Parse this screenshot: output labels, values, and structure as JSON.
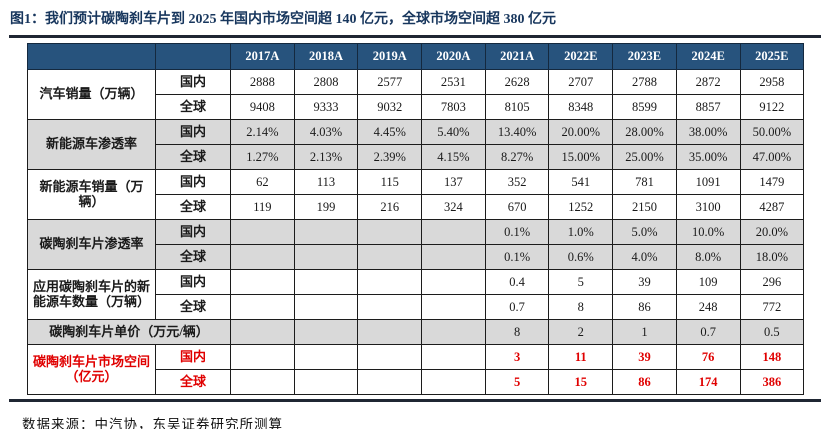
{
  "title": "图1：我们预计碳陶刹车片到 2025 年国内市场空间超 140 亿元，全球市场空间超 380 亿元",
  "footer": "数据来源：中汽协，东吴证券研究所测算",
  "colors": {
    "header_bg": "#27537D",
    "band_gray": "#D9D9D9",
    "highlight_red": "#E00000",
    "title_navy": "#17365D"
  },
  "table": {
    "year_headers": [
      "2017A",
      "2018A",
      "2019A",
      "2020A",
      "2021A",
      "2022E",
      "2023E",
      "2024E",
      "2025E"
    ],
    "groups": [
      {
        "label": "汽车销量（万辆）",
        "shade": "white",
        "red": false,
        "rows": [
          {
            "scope": "国内",
            "values": [
              "2888",
              "2808",
              "2577",
              "2531",
              "2628",
              "2707",
              "2788",
              "2872",
              "2958"
            ]
          },
          {
            "scope": "全球",
            "values": [
              "9408",
              "9333",
              "9032",
              "7803",
              "8105",
              "8348",
              "8599",
              "8857",
              "9122"
            ]
          }
        ]
      },
      {
        "label": "新能源车渗透率",
        "shade": "gray",
        "red": false,
        "rows": [
          {
            "scope": "国内",
            "values": [
              "2.14%",
              "4.03%",
              "4.45%",
              "5.40%",
              "13.40%",
              "20.00%",
              "28.00%",
              "38.00%",
              "50.00%"
            ]
          },
          {
            "scope": "全球",
            "values": [
              "1.27%",
              "2.13%",
              "2.39%",
              "4.15%",
              "8.27%",
              "15.00%",
              "25.00%",
              "35.00%",
              "47.00%"
            ]
          }
        ]
      },
      {
        "label": "新能源车销量（万辆）",
        "shade": "white",
        "red": false,
        "rows": [
          {
            "scope": "国内",
            "values": [
              "62",
              "113",
              "115",
              "137",
              "352",
              "541",
              "781",
              "1091",
              "1479"
            ]
          },
          {
            "scope": "全球",
            "values": [
              "119",
              "199",
              "216",
              "324",
              "670",
              "1252",
              "2150",
              "3100",
              "4287"
            ]
          }
        ]
      },
      {
        "label": "碳陶刹车片渗透率",
        "shade": "gray",
        "red": false,
        "rows": [
          {
            "scope": "国内",
            "values": [
              "",
              "",
              "",
              "",
              "0.1%",
              "1.0%",
              "5.0%",
              "10.0%",
              "20.0%"
            ]
          },
          {
            "scope": "全球",
            "values": [
              "",
              "",
              "",
              "",
              "0.1%",
              "0.6%",
              "4.0%",
              "8.0%",
              "18.0%"
            ]
          }
        ]
      },
      {
        "label": "应用碳陶刹车片的新能源车数量（万辆）",
        "shade": "white",
        "red": false,
        "rows": [
          {
            "scope": "国内",
            "values": [
              "",
              "",
              "",
              "",
              "0.4",
              "5",
              "39",
              "109",
              "296"
            ]
          },
          {
            "scope": "全球",
            "values": [
              "",
              "",
              "",
              "",
              "0.7",
              "8",
              "86",
              "248",
              "772"
            ]
          }
        ]
      },
      {
        "label": "碳陶刹车片单价（万元/辆）",
        "shade": "gray",
        "red": false,
        "single": true,
        "rows": [
          {
            "scope": "",
            "values": [
              "",
              "",
              "",
              "",
              "8",
              "2",
              "1",
              "0.7",
              "0.5"
            ]
          }
        ]
      },
      {
        "label": "碳陶刹车片市场空间（亿元）",
        "shade": "white",
        "red": true,
        "rows": [
          {
            "scope": "国内",
            "values": [
              "",
              "",
              "",
              "",
              "3",
              "11",
              "39",
              "76",
              "148"
            ]
          },
          {
            "scope": "全球",
            "values": [
              "",
              "",
              "",
              "",
              "5",
              "15",
              "86",
              "174",
              "386"
            ]
          }
        ]
      }
    ]
  }
}
